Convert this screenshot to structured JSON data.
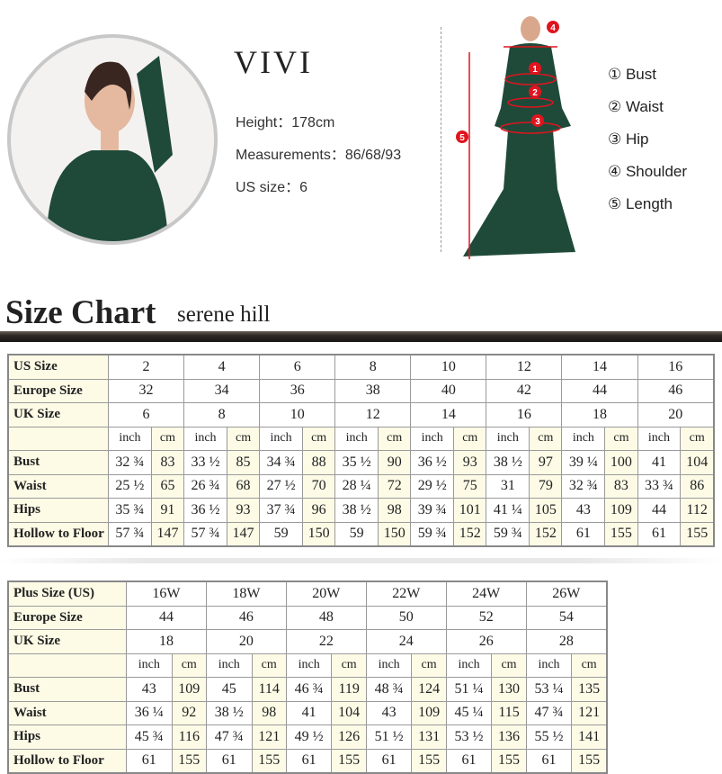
{
  "model": {
    "name": "VIVI",
    "height": "Height：178cm",
    "measurements": "Measurements：86/68/93",
    "us_size": "US size：6"
  },
  "legend": [
    "① Bust",
    "② Waist",
    "③ Hip",
    "④ Shoulder",
    "⑤ Length"
  ],
  "markers": [
    "1",
    "2",
    "3",
    "4",
    "5"
  ],
  "title": "Size Chart",
  "subtitle": "serene hill",
  "colors": {
    "dress": "#1f4a3a",
    "marker": "#e0141e",
    "label_bg": "#fdfbe6"
  },
  "table1": {
    "head": [
      {
        "label": "US Size",
        "values": [
          "2",
          "4",
          "6",
          "8",
          "10",
          "12",
          "14",
          "16"
        ]
      },
      {
        "label": "Europe Size",
        "values": [
          "32",
          "34",
          "36",
          "38",
          "40",
          "42",
          "44",
          "46"
        ]
      },
      {
        "label": "UK Size",
        "values": [
          "6",
          "8",
          "10",
          "12",
          "14",
          "16",
          "18",
          "20"
        ]
      }
    ],
    "units": [
      "inch",
      "cm"
    ],
    "rows": [
      {
        "label": "Bust",
        "values": [
          "32 ¾",
          "83",
          "33 ½",
          "85",
          "34 ¾",
          "88",
          "35 ½",
          "90",
          "36 ½",
          "93",
          "38 ½",
          "97",
          "39 ¼",
          "100",
          "41",
          "104"
        ]
      },
      {
        "label": "Waist",
        "values": [
          "25 ½",
          "65",
          "26 ¾",
          "68",
          "27 ½",
          "70",
          "28 ¼",
          "72",
          "29 ½",
          "75",
          "31",
          "79",
          "32 ¾",
          "83",
          "33 ¾",
          "86"
        ]
      },
      {
        "label": "Hips",
        "values": [
          "35 ¾",
          "91",
          "36 ½",
          "93",
          "37 ¾",
          "96",
          "38 ½",
          "98",
          "39 ¾",
          "101",
          "41 ¼",
          "105",
          "43",
          "109",
          "44",
          "112"
        ]
      },
      {
        "label": "Hollow to Floor",
        "values": [
          "57 ¾",
          "147",
          "57 ¾",
          "147",
          "59",
          "150",
          "59",
          "150",
          "59 ¾",
          "152",
          "59 ¾",
          "152",
          "61",
          "155",
          "61",
          "155"
        ]
      }
    ]
  },
  "table2": {
    "head": [
      {
        "label": "Plus Size (US)",
        "values": [
          "16W",
          "18W",
          "20W",
          "22W",
          "24W",
          "26W"
        ]
      },
      {
        "label": "Europe Size",
        "values": [
          "44",
          "46",
          "48",
          "50",
          "52",
          "54"
        ]
      },
      {
        "label": "UK Size",
        "values": [
          "18",
          "20",
          "22",
          "24",
          "26",
          "28"
        ]
      }
    ],
    "units": [
      "inch",
      "cm"
    ],
    "rows": [
      {
        "label": "Bust",
        "values": [
          "43",
          "109",
          "45",
          "114",
          "46 ¾",
          "119",
          "48 ¾",
          "124",
          "51 ¼",
          "130",
          "53 ¼",
          "135"
        ]
      },
      {
        "label": "Waist",
        "values": [
          "36 ¼",
          "92",
          "38 ½",
          "98",
          "41",
          "104",
          "43",
          "109",
          "45 ¼",
          "115",
          "47 ¾",
          "121"
        ]
      },
      {
        "label": "Hips",
        "values": [
          "45 ¾",
          "116",
          "47 ¾",
          "121",
          "49 ½",
          "126",
          "51 ½",
          "131",
          "53 ½",
          "136",
          "55 ½",
          "141"
        ]
      },
      {
        "label": "Hollow to Floor",
        "values": [
          "61",
          "155",
          "61",
          "155",
          "61",
          "155",
          "61",
          "155",
          "61",
          "155",
          "61",
          "155"
        ]
      }
    ]
  }
}
